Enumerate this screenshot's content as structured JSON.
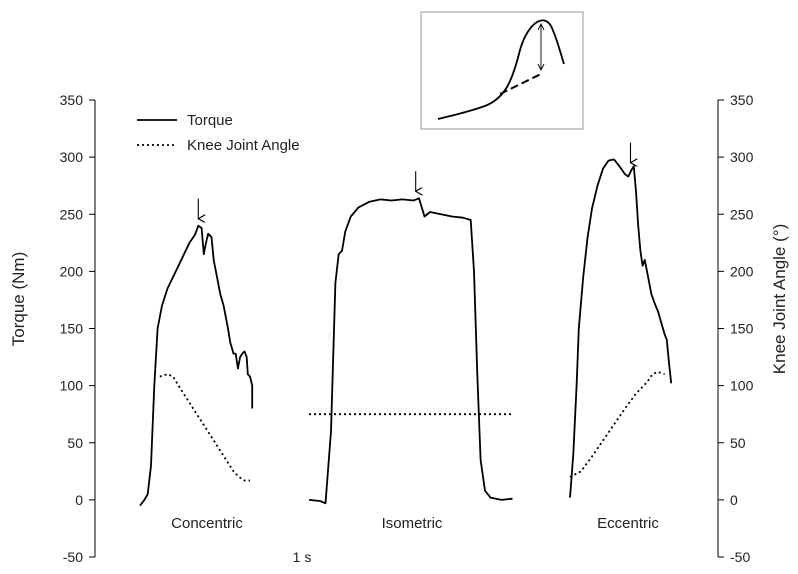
{
  "chart_data": {
    "type": "line",
    "title": "",
    "ylabel_left": "Torque (Nm)",
    "ylabel_right": "Knee Joint Angle (°)",
    "ylim": [
      -50,
      350
    ],
    "yticks": [
      -50,
      0,
      50,
      100,
      150,
      200,
      250,
      300,
      350
    ],
    "time_scale_label": "1 s",
    "legend": {
      "placement": "top-left",
      "entries": [
        {
          "name": "Torque",
          "style": "solid"
        },
        {
          "name": "Knee Joint Angle",
          "style": "dotted"
        }
      ]
    },
    "conditions": [
      {
        "name": "Concentric",
        "torque": [
          [
            0,
            -5
          ],
          [
            0.04,
            0
          ],
          [
            0.07,
            5
          ],
          [
            0.1,
            30
          ],
          [
            0.13,
            100
          ],
          [
            0.16,
            150
          ],
          [
            0.2,
            170
          ],
          [
            0.25,
            185
          ],
          [
            0.3,
            195
          ],
          [
            0.35,
            205
          ],
          [
            0.4,
            215
          ],
          [
            0.45,
            225
          ],
          [
            0.5,
            232
          ],
          [
            0.53,
            240
          ],
          [
            0.56,
            238
          ],
          [
            0.58,
            215
          ],
          [
            0.6,
            225
          ],
          [
            0.62,
            233
          ],
          [
            0.65,
            230
          ],
          [
            0.67,
            210
          ],
          [
            0.7,
            195
          ],
          [
            0.73,
            180
          ],
          [
            0.76,
            170
          ],
          [
            0.78,
            160
          ],
          [
            0.8,
            150
          ],
          [
            0.82,
            138
          ],
          [
            0.85,
            128
          ],
          [
            0.87,
            128
          ],
          [
            0.89,
            115
          ],
          [
            0.91,
            125
          ],
          [
            0.93,
            128
          ],
          [
            0.95,
            130
          ],
          [
            0.97,
            125
          ],
          [
            0.98,
            110
          ],
          [
            1.0,
            108
          ],
          [
            1.02,
            100
          ],
          [
            1.02,
            80
          ]
        ],
        "angle": [
          [
            0.18,
            108
          ],
          [
            0.25,
            110
          ],
          [
            0.3,
            108
          ],
          [
            0.35,
            100
          ],
          [
            0.45,
            85
          ],
          [
            0.55,
            70
          ],
          [
            0.65,
            55
          ],
          [
            0.75,
            40
          ],
          [
            0.85,
            25
          ],
          [
            0.9,
            20
          ],
          [
            0.95,
            17
          ],
          [
            1.0,
            17
          ]
        ],
        "peak_arrow": {
          "x": 0.53,
          "y": 240
        }
      },
      {
        "name": "Isometric",
        "torque": [
          [
            0,
            0
          ],
          [
            0.1,
            -1
          ],
          [
            0.15,
            -3
          ],
          [
            0.2,
            60
          ],
          [
            0.24,
            190
          ],
          [
            0.27,
            215
          ],
          [
            0.3,
            218
          ],
          [
            0.33,
            235
          ],
          [
            0.38,
            248
          ],
          [
            0.45,
            256
          ],
          [
            0.55,
            261
          ],
          [
            0.65,
            263
          ],
          [
            0.75,
            262
          ],
          [
            0.85,
            263
          ],
          [
            0.95,
            262
          ],
          [
            1.0,
            264
          ],
          [
            1.05,
            248
          ],
          [
            1.1,
            252
          ],
          [
            1.2,
            250
          ],
          [
            1.3,
            248
          ],
          [
            1.4,
            247
          ],
          [
            1.47,
            245
          ],
          [
            1.5,
            200
          ],
          [
            1.53,
            110
          ],
          [
            1.56,
            35
          ],
          [
            1.6,
            8
          ],
          [
            1.65,
            2
          ],
          [
            1.75,
            0
          ],
          [
            1.85,
            1
          ]
        ],
        "angle": [
          [
            0,
            75
          ],
          [
            1.85,
            75
          ]
        ],
        "peak_arrow": {
          "x": 0.97,
          "y": 264
        }
      },
      {
        "name": "Eccentric",
        "torque": [
          [
            0,
            2
          ],
          [
            0.03,
            40
          ],
          [
            0.06,
            100
          ],
          [
            0.08,
            150
          ],
          [
            0.12,
            195
          ],
          [
            0.16,
            230
          ],
          [
            0.2,
            255
          ],
          [
            0.25,
            275
          ],
          [
            0.3,
            290
          ],
          [
            0.35,
            297
          ],
          [
            0.4,
            298
          ],
          [
            0.45,
            292
          ],
          [
            0.5,
            285
          ],
          [
            0.53,
            283
          ],
          [
            0.56,
            289
          ],
          [
            0.58,
            292
          ],
          [
            0.6,
            270
          ],
          [
            0.62,
            240
          ],
          [
            0.64,
            218
          ],
          [
            0.66,
            205
          ],
          [
            0.68,
            210
          ],
          [
            0.71,
            195
          ],
          [
            0.74,
            180
          ],
          [
            0.77,
            172
          ],
          [
            0.8,
            165
          ],
          [
            0.83,
            155
          ],
          [
            0.86,
            145
          ],
          [
            0.88,
            140
          ],
          [
            0.9,
            120
          ],
          [
            0.92,
            102
          ]
        ],
        "angle": [
          [
            0,
            20
          ],
          [
            0.1,
            25
          ],
          [
            0.2,
            38
          ],
          [
            0.3,
            52
          ],
          [
            0.4,
            66
          ],
          [
            0.5,
            80
          ],
          [
            0.6,
            93
          ],
          [
            0.7,
            103
          ],
          [
            0.75,
            110
          ],
          [
            0.8,
            112
          ],
          [
            0.86,
            110
          ]
        ],
        "peak_arrow": {
          "x": 0.55,
          "y": 289
        }
      }
    ]
  }
}
